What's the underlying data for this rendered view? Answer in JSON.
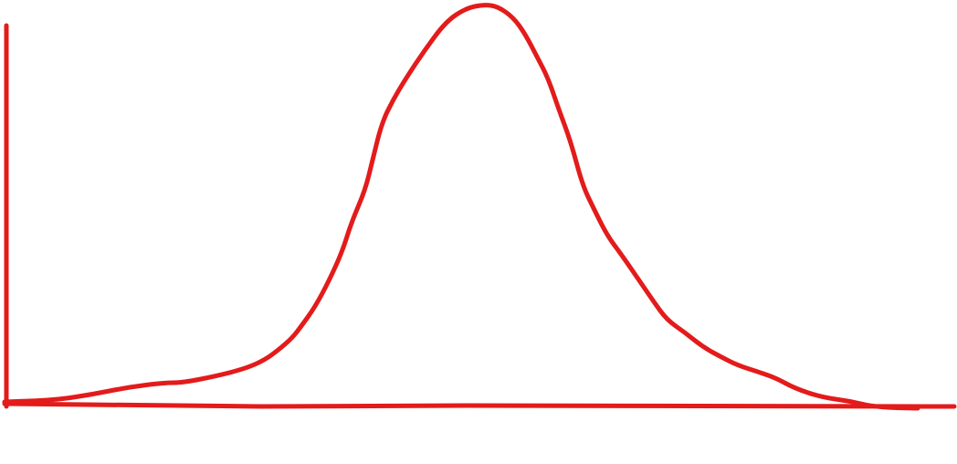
{
  "diagram": {
    "shape": "bell-curve",
    "labels": [],
    "colors": {
      "stroke": "#e31b1b",
      "background": "#ffffff"
    }
  }
}
